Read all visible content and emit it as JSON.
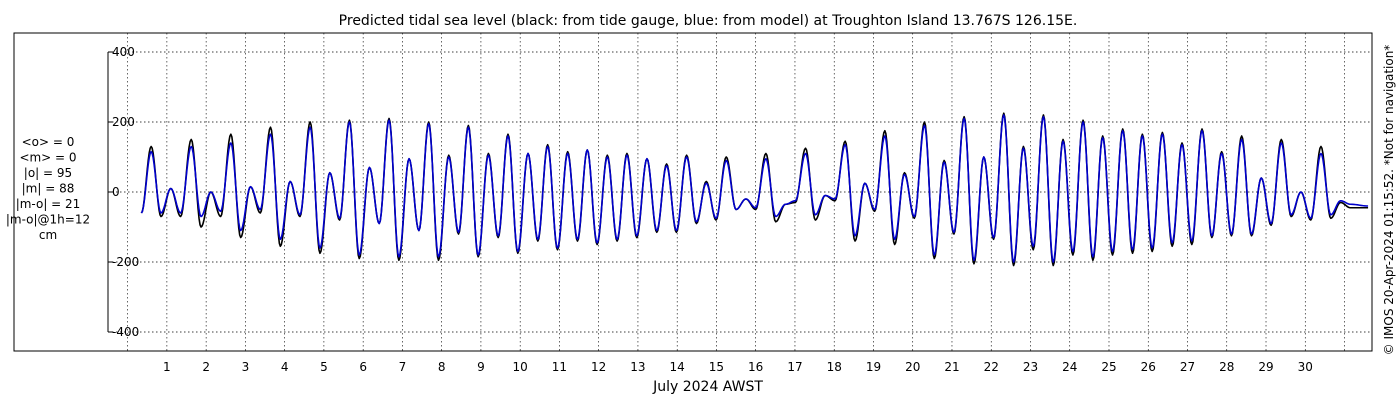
{
  "chart_data": {
    "type": "line",
    "title": "Predicted tidal sea level (black: from tide gauge, blue: from model) at Troughton Island 13.767S 126.15E.",
    "xlabel": "July 2024 AWST",
    "ylabel": "",
    "units": "cm",
    "ylim": [
      -400,
      400
    ],
    "yticks": [
      -400,
      -200,
      0,
      200,
      400
    ],
    "xlim": [
      -0.5,
      31.7
    ],
    "xticks": [
      1,
      2,
      3,
      4,
      5,
      6,
      7,
      8,
      9,
      10,
      11,
      12,
      13,
      14,
      15,
      16,
      17,
      18,
      19,
      20,
      21,
      22,
      23,
      24,
      25,
      26,
      27,
      28,
      29,
      30
    ],
    "grid": true,
    "stats": [
      "<o> = 0",
      "<m> = 0",
      "|o| = 95",
      "|m| = 88",
      "|m-o| = 21",
      "|m-o|@1h=12",
      "cm"
    ],
    "side_note": "© IMOS 20-Apr-2024 01:15:52. *Not for navigation*",
    "time_start": 0.3,
    "time_end": 31.6,
    "series": [
      {
        "color": "#000000",
        "extrema": [
          [
            0.35,
            -60
          ],
          [
            0.6,
            130
          ],
          [
            0.85,
            -70
          ],
          [
            1.1,
            10
          ],
          [
            1.35,
            -70
          ],
          [
            1.62,
            150
          ],
          [
            1.87,
            -100
          ],
          [
            2.12,
            0
          ],
          [
            2.37,
            -70
          ],
          [
            2.63,
            165
          ],
          [
            2.88,
            -130
          ],
          [
            3.13,
            15
          ],
          [
            3.38,
            -60
          ],
          [
            3.64,
            185
          ],
          [
            3.89,
            -155
          ],
          [
            4.14,
            30
          ],
          [
            4.39,
            -70
          ],
          [
            4.65,
            200
          ],
          [
            4.9,
            -175
          ],
          [
            5.15,
            55
          ],
          [
            5.4,
            -80
          ],
          [
            5.65,
            205
          ],
          [
            5.9,
            -190
          ],
          [
            6.16,
            70
          ],
          [
            6.41,
            -90
          ],
          [
            6.66,
            210
          ],
          [
            6.91,
            -195
          ],
          [
            7.17,
            95
          ],
          [
            7.42,
            -110
          ],
          [
            7.67,
            200
          ],
          [
            7.92,
            -195
          ],
          [
            8.18,
            105
          ],
          [
            8.43,
            -120
          ],
          [
            8.68,
            190
          ],
          [
            8.93,
            -185
          ],
          [
            9.19,
            110
          ],
          [
            9.44,
            -130
          ],
          [
            9.69,
            165
          ],
          [
            9.94,
            -175
          ],
          [
            10.2,
            110
          ],
          [
            10.45,
            -140
          ],
          [
            10.7,
            135
          ],
          [
            10.95,
            -165
          ],
          [
            11.21,
            115
          ],
          [
            11.46,
            -140
          ],
          [
            11.71,
            120
          ],
          [
            11.96,
            -150
          ],
          [
            12.22,
            105
          ],
          [
            12.47,
            -140
          ],
          [
            12.72,
            110
          ],
          [
            12.97,
            -130
          ],
          [
            13.23,
            95
          ],
          [
            13.48,
            -115
          ],
          [
            13.73,
            80
          ],
          [
            13.98,
            -115
          ],
          [
            14.24,
            105
          ],
          [
            14.49,
            -90
          ],
          [
            14.74,
            30
          ],
          [
            14.99,
            -80
          ],
          [
            15.25,
            100
          ],
          [
            15.5,
            -50
          ],
          [
            15.75,
            -20
          ],
          [
            16.0,
            -50
          ],
          [
            16.26,
            110
          ],
          [
            16.51,
            -85
          ],
          [
            16.76,
            -35
          ],
          [
            17.01,
            -30
          ],
          [
            17.27,
            125
          ],
          [
            17.52,
            -80
          ],
          [
            17.77,
            -10
          ],
          [
            18.02,
            -25
          ],
          [
            18.28,
            145
          ],
          [
            18.53,
            -140
          ],
          [
            18.78,
            25
          ],
          [
            19.03,
            -55
          ],
          [
            19.29,
            175
          ],
          [
            19.54,
            -150
          ],
          [
            19.79,
            55
          ],
          [
            20.04,
            -75
          ],
          [
            20.3,
            200
          ],
          [
            20.55,
            -190
          ],
          [
            20.8,
            90
          ],
          [
            21.05,
            -120
          ],
          [
            21.31,
            215
          ],
          [
            21.56,
            -205
          ],
          [
            21.81,
            100
          ],
          [
            22.06,
            -135
          ],
          [
            22.32,
            225
          ],
          [
            22.57,
            -210
          ],
          [
            22.82,
            130
          ],
          [
            23.07,
            -165
          ],
          [
            23.33,
            220
          ],
          [
            23.58,
            -210
          ],
          [
            23.83,
            150
          ],
          [
            24.08,
            -180
          ],
          [
            24.34,
            205
          ],
          [
            24.59,
            -195
          ],
          [
            24.84,
            160
          ],
          [
            25.09,
            -180
          ],
          [
            25.35,
            180
          ],
          [
            25.6,
            -175
          ],
          [
            25.85,
            165
          ],
          [
            26.1,
            -170
          ],
          [
            26.36,
            170
          ],
          [
            26.61,
            -155
          ],
          [
            26.86,
            140
          ],
          [
            27.11,
            -150
          ],
          [
            27.37,
            180
          ],
          [
            27.62,
            -130
          ],
          [
            27.87,
            115
          ],
          [
            28.12,
            -125
          ],
          [
            28.38,
            160
          ],
          [
            28.63,
            -125
          ],
          [
            28.88,
            40
          ],
          [
            29.13,
            -95
          ],
          [
            29.39,
            150
          ],
          [
            29.64,
            -70
          ],
          [
            29.89,
            0
          ],
          [
            30.14,
            -80
          ],
          [
            30.4,
            130
          ],
          [
            30.65,
            -75
          ],
          [
            30.9,
            -30
          ],
          [
            31.15,
            -45
          ],
          [
            31.6,
            -45
          ]
        ]
      },
      {
        "color": "#0000cc",
        "extrema": [
          [
            0.35,
            -60
          ],
          [
            0.6,
            115
          ],
          [
            0.85,
            -60
          ],
          [
            1.1,
            10
          ],
          [
            1.35,
            -60
          ],
          [
            1.62,
            130
          ],
          [
            1.87,
            -70
          ],
          [
            2.12,
            0
          ],
          [
            2.37,
            -55
          ],
          [
            2.63,
            140
          ],
          [
            2.88,
            -110
          ],
          [
            3.13,
            15
          ],
          [
            3.38,
            -50
          ],
          [
            3.64,
            165
          ],
          [
            3.89,
            -135
          ],
          [
            4.14,
            30
          ],
          [
            4.39,
            -65
          ],
          [
            4.65,
            185
          ],
          [
            4.9,
            -160
          ],
          [
            5.15,
            55
          ],
          [
            5.4,
            -75
          ],
          [
            5.65,
            200
          ],
          [
            5.9,
            -180
          ],
          [
            6.16,
            70
          ],
          [
            6.41,
            -90
          ],
          [
            6.66,
            205
          ],
          [
            6.91,
            -185
          ],
          [
            7.17,
            95
          ],
          [
            7.42,
            -110
          ],
          [
            7.67,
            195
          ],
          [
            7.92,
            -185
          ],
          [
            8.18,
            100
          ],
          [
            8.43,
            -115
          ],
          [
            8.68,
            185
          ],
          [
            8.93,
            -180
          ],
          [
            9.19,
            105
          ],
          [
            9.44,
            -125
          ],
          [
            9.69,
            160
          ],
          [
            9.94,
            -170
          ],
          [
            10.2,
            110
          ],
          [
            10.45,
            -135
          ],
          [
            10.7,
            130
          ],
          [
            10.95,
            -160
          ],
          [
            11.21,
            110
          ],
          [
            11.46,
            -135
          ],
          [
            11.71,
            120
          ],
          [
            11.96,
            -145
          ],
          [
            12.22,
            100
          ],
          [
            12.47,
            -135
          ],
          [
            12.72,
            105
          ],
          [
            12.97,
            -125
          ],
          [
            13.23,
            95
          ],
          [
            13.48,
            -110
          ],
          [
            13.73,
            75
          ],
          [
            13.98,
            -110
          ],
          [
            14.24,
            100
          ],
          [
            14.49,
            -85
          ],
          [
            14.74,
            25
          ],
          [
            14.99,
            -75
          ],
          [
            15.25,
            90
          ],
          [
            15.5,
            -50
          ],
          [
            15.75,
            -20
          ],
          [
            16.0,
            -45
          ],
          [
            16.26,
            95
          ],
          [
            16.51,
            -70
          ],
          [
            16.76,
            -35
          ],
          [
            17.01,
            -25
          ],
          [
            17.27,
            110
          ],
          [
            17.52,
            -65
          ],
          [
            17.77,
            -10
          ],
          [
            18.02,
            -20
          ],
          [
            18.28,
            135
          ],
          [
            18.53,
            -125
          ],
          [
            18.78,
            25
          ],
          [
            19.03,
            -50
          ],
          [
            19.29,
            160
          ],
          [
            19.54,
            -135
          ],
          [
            19.79,
            50
          ],
          [
            20.04,
            -70
          ],
          [
            20.3,
            190
          ],
          [
            20.55,
            -180
          ],
          [
            20.8,
            85
          ],
          [
            21.05,
            -115
          ],
          [
            21.31,
            210
          ],
          [
            21.56,
            -195
          ],
          [
            21.81,
            100
          ],
          [
            22.06,
            -130
          ],
          [
            22.32,
            220
          ],
          [
            22.57,
            -200
          ],
          [
            22.82,
            125
          ],
          [
            23.07,
            -155
          ],
          [
            23.33,
            215
          ],
          [
            23.58,
            -200
          ],
          [
            23.83,
            145
          ],
          [
            24.08,
            -170
          ],
          [
            24.34,
            200
          ],
          [
            24.59,
            -185
          ],
          [
            24.84,
            155
          ],
          [
            25.09,
            -170
          ],
          [
            25.35,
            175
          ],
          [
            25.6,
            -165
          ],
          [
            25.85,
            160
          ],
          [
            26.1,
            -160
          ],
          [
            26.36,
            165
          ],
          [
            26.61,
            -145
          ],
          [
            26.86,
            135
          ],
          [
            27.11,
            -140
          ],
          [
            27.37,
            175
          ],
          [
            27.62,
            -125
          ],
          [
            27.87,
            110
          ],
          [
            28.12,
            -120
          ],
          [
            28.38,
            150
          ],
          [
            28.63,
            -120
          ],
          [
            28.88,
            40
          ],
          [
            29.13,
            -90
          ],
          [
            29.39,
            140
          ],
          [
            29.64,
            -65
          ],
          [
            29.89,
            0
          ],
          [
            30.14,
            -75
          ],
          [
            30.4,
            110
          ],
          [
            30.65,
            -65
          ],
          [
            30.9,
            -25
          ],
          [
            31.15,
            -35
          ],
          [
            31.6,
            -40
          ]
        ]
      }
    ]
  }
}
